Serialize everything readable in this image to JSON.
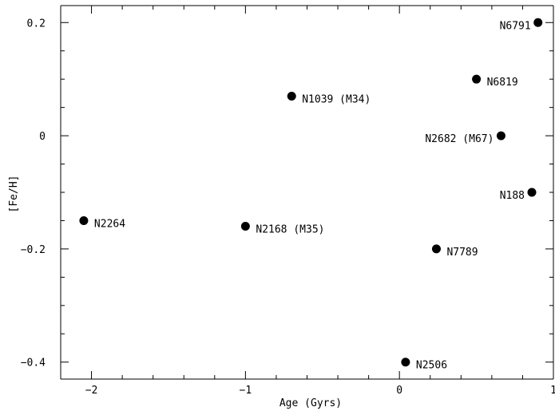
{
  "chart_data": {
    "type": "scatter",
    "title": "",
    "xlabel": "Age (Gyrs)",
    "ylabel": "[Fe/H]",
    "xlim": [
      -2.2,
      1.0
    ],
    "ylim": [
      -0.43,
      0.23
    ],
    "grid": false,
    "legend": "none",
    "marker_color": "#000000",
    "x_ticks": [
      {
        "value": -2,
        "label": "−2"
      },
      {
        "value": -1,
        "label": "−1"
      },
      {
        "value": 0,
        "label": "0"
      },
      {
        "value": 1,
        "label": "1"
      }
    ],
    "y_ticks": [
      {
        "value": 0.2,
        "label": "0.2"
      },
      {
        "value": 0,
        "label": "0"
      },
      {
        "value": -0.2,
        "label": "−0.2"
      },
      {
        "value": -0.4,
        "label": "−0.4"
      }
    ],
    "points": [
      {
        "label": "N6791",
        "x": 0.9,
        "y": 0.2,
        "label_side": "left"
      },
      {
        "label": "N6819",
        "x": 0.5,
        "y": 0.1,
        "label_side": "right"
      },
      {
        "label": "N1039 (M34)",
        "x": -0.7,
        "y": 0.07,
        "label_side": "right"
      },
      {
        "label": "N2682 (M67)",
        "x": 0.66,
        "y": 0.0,
        "label_side": "left"
      },
      {
        "label": "N188",
        "x": 0.86,
        "y": -0.1,
        "label_side": "left"
      },
      {
        "label": "N2264",
        "x": -2.05,
        "y": -0.15,
        "label_side": "right"
      },
      {
        "label": "N2168 (M35)",
        "x": -1.0,
        "y": -0.16,
        "label_side": "right"
      },
      {
        "label": "N7789",
        "x": 0.24,
        "y": -0.2,
        "label_side": "right"
      },
      {
        "label": "N2506",
        "x": 0.04,
        "y": -0.4,
        "label_side": "right"
      }
    ]
  }
}
